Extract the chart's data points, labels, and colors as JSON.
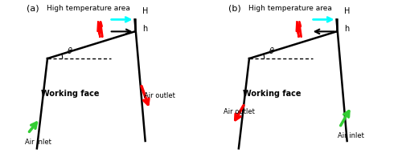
{
  "fig_width": 5.0,
  "fig_height": 1.91,
  "dpi": 100,
  "panels": [
    "(a)",
    "(b)"
  ],
  "title": "High temperature area",
  "label_H": "H",
  "label_h": "h",
  "label_theta": "θ",
  "label_working_face": "Working face",
  "label_air_inlet": "Air inlet",
  "label_air_outlet": "Air outlet",
  "bg_color": "white"
}
